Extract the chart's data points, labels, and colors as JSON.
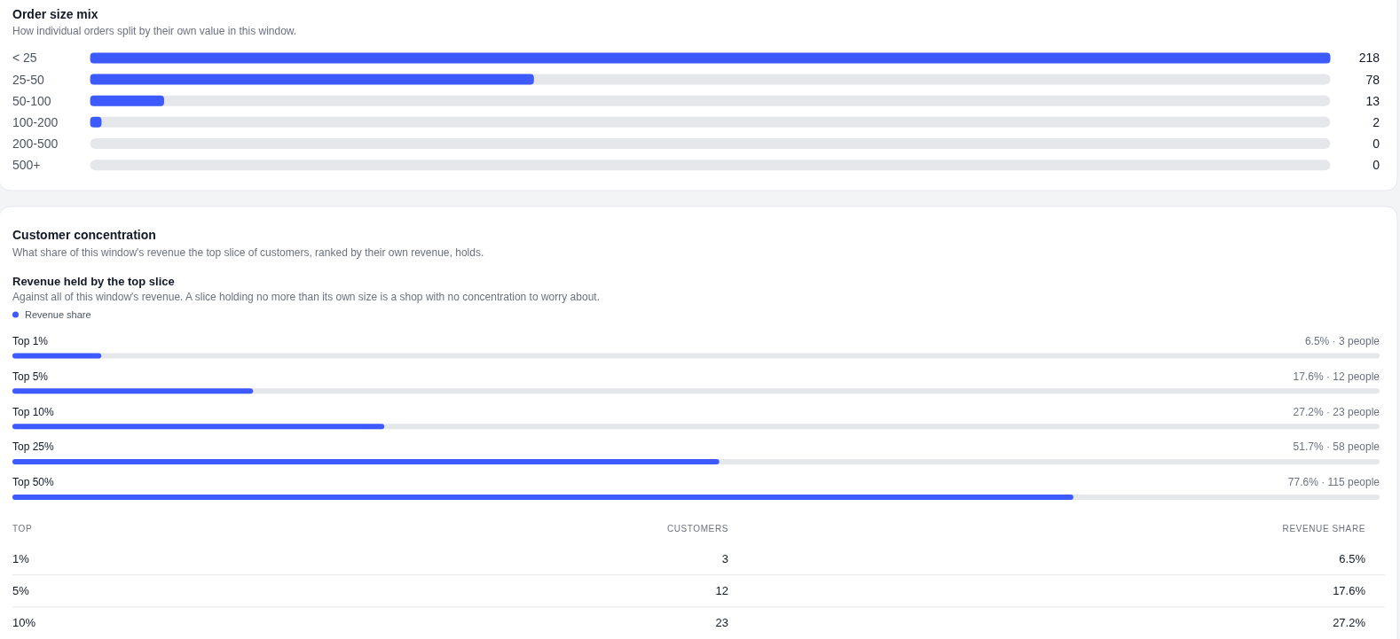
{
  "chart_data": [
    {
      "type": "bar",
      "orientation": "horizontal",
      "title": "Order size mix",
      "subtitle": "How individual orders split by their own value in this window.",
      "categories": [
        "< 25",
        "25-50",
        "50-100",
        "100-200",
        "200-500",
        "500+"
      ],
      "values": [
        218,
        78,
        13,
        2,
        0,
        0
      ],
      "color": "#3d5afe",
      "xlim": [
        0,
        218
      ],
      "data_labels": true
    },
    {
      "type": "other",
      "title": "Customer concentration",
      "subtitle": "What share of this window's revenue the top slice of customers, ranked by their own revenue, holds."
    },
    {
      "type": "bar",
      "orientation": "horizontal",
      "title": "Revenue held by the top slice",
      "subtitle": "Against all of this window's revenue. A slice holding no more than its own size is a shop with no concentration to worry about.",
      "categories": [
        "Top 1%",
        "Top 5%",
        "Top 10%",
        "Top 25%",
        "Top 50%"
      ],
      "series": [
        {
          "name": "Revenue share",
          "color": "#3d5afe",
          "values": [
            6.5,
            17.6,
            27.2,
            51.7,
            77.6
          ],
          "value_labels": [
            "6.5% · 3 people",
            "17.6% · 12 people",
            "27.2% · 23 people",
            "51.7% · 58 people",
            "77.6% · 115 people"
          ]
        }
      ],
      "xlim": [
        0,
        100
      ],
      "legend": "top left"
    },
    {
      "type": "other",
      "ylabel": "TOP",
      "categories": [
        "1%",
        "5%",
        "10%"
      ],
      "series": [
        {
          "name": "CUSTOMERS",
          "values": [
            3,
            12,
            23
          ],
          "value_labels": [
            "3",
            "12",
            "23"
          ]
        },
        {
          "name": "REVENUE SHARE",
          "values": [
            6.5,
            17.6,
            27.2
          ],
          "value_labels": [
            "6.5%",
            "17.6%",
            "27.2%"
          ]
        }
      ]
    }
  ]
}
